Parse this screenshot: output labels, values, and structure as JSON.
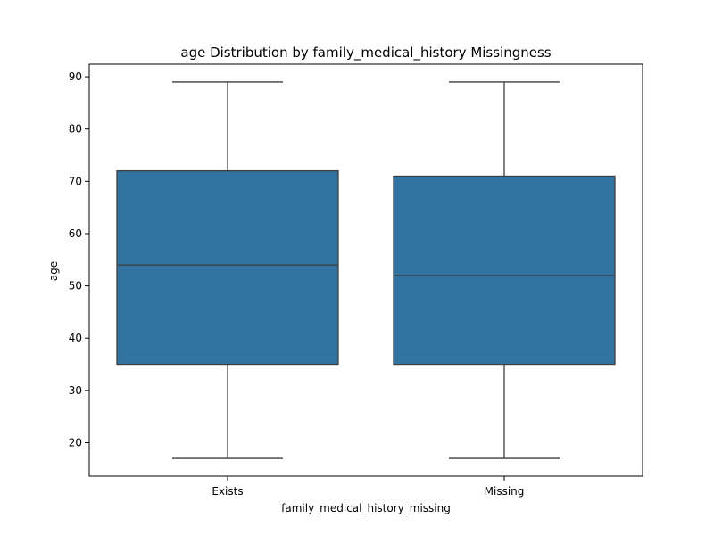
{
  "chart_data": {
    "type": "box",
    "title": "age Distribution by family_medical_history Missingness",
    "xlabel": "family_medical_history_missing",
    "ylabel": "age",
    "categories": [
      "Exists",
      "Missing"
    ],
    "boxes": [
      {
        "category": "Exists",
        "min": 17,
        "q1": 35,
        "median": 54,
        "q3": 72,
        "max": 89
      },
      {
        "category": "Missing",
        "min": 17,
        "q1": 35,
        "median": 52,
        "q3": 71,
        "max": 89
      }
    ],
    "ylim": [
      13.6,
      92.4
    ],
    "yticks": [
      20,
      30,
      40,
      50,
      60,
      70,
      80,
      90
    ],
    "grid": false,
    "colors": {
      "box_fill": "#3274a1",
      "line": "#3f3f3f",
      "axes": "#000000"
    }
  }
}
